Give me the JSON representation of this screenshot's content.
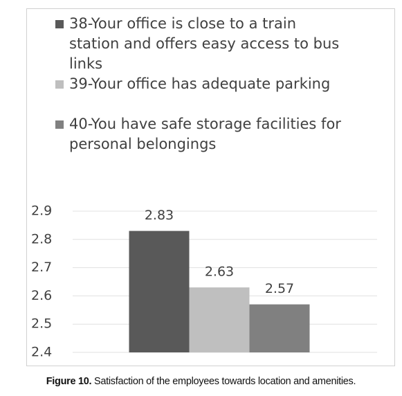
{
  "chart_data": {
    "type": "bar",
    "categories": [
      null
    ],
    "series": [
      {
        "name": "38-Your office is close to a train station and offers easy access to bus links",
        "color": "#595959",
        "values": [
          2.83
        ]
      },
      {
        "name": "39-Your office has adequate parking",
        "color": "#bfbfbf",
        "values": [
          2.63
        ]
      },
      {
        "name": "40-You have safe storage facilities for personal belongings",
        "color": "#808080",
        "values": [
          2.57
        ]
      }
    ],
    "ylim": [
      2.4,
      2.9
    ],
    "yticks": [
      2.4,
      2.5,
      2.6,
      2.7,
      2.8,
      2.9
    ],
    "grid": true,
    "legend": "top"
  },
  "caption_label": "Figure 10.",
  "caption": "Satisfaction of the employees towards location and amenities."
}
